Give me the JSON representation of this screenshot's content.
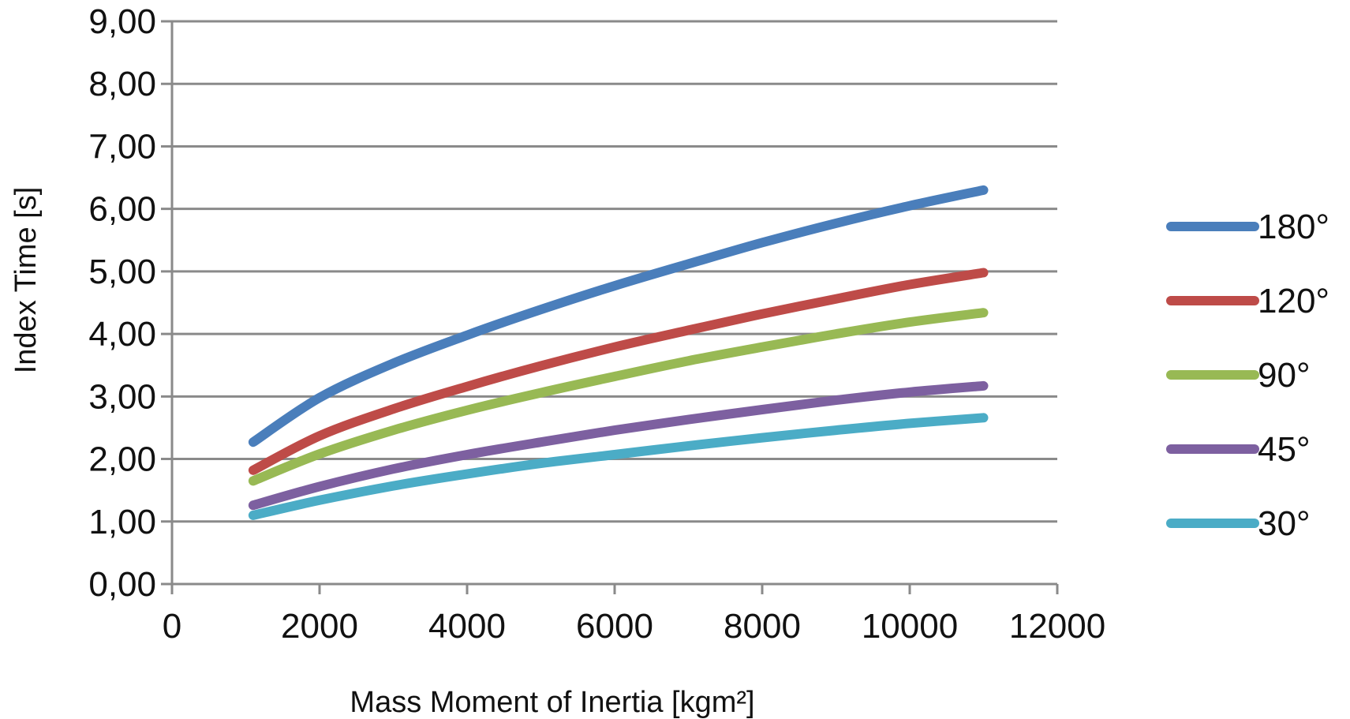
{
  "chart_data": {
    "type": "line",
    "title": "",
    "xlabel": "Mass Moment of Inertia [kgm²]",
    "ylabel": "Index Time [s]",
    "xlim": [
      0,
      12000
    ],
    "ylim": [
      0,
      9
    ],
    "x_ticks": [
      "0",
      "2000",
      "4000",
      "6000",
      "8000",
      "10000",
      "12000"
    ],
    "y_ticks": [
      "0,00",
      "1,00",
      "2,00",
      "3,00",
      "4,00",
      "5,00",
      "6,00",
      "7,00",
      "8,00",
      "9,00"
    ],
    "grid": true,
    "legend_position": "right",
    "x": [
      1100,
      2000,
      3000,
      4000,
      5000,
      6000,
      7000,
      8000,
      9000,
      10000,
      11000
    ],
    "series": [
      {
        "name": "180°",
        "color": "#4a7ebb",
        "values": [
          2.27,
          2.98,
          3.53,
          3.98,
          4.39,
          4.77,
          5.12,
          5.46,
          5.77,
          6.05,
          6.3
        ]
      },
      {
        "name": "120°",
        "color": "#be4b48",
        "values": [
          1.82,
          2.37,
          2.8,
          3.16,
          3.49,
          3.79,
          4.06,
          4.32,
          4.56,
          4.79,
          4.98
        ]
      },
      {
        "name": "90°",
        "color": "#98b954",
        "values": [
          1.65,
          2.08,
          2.46,
          2.78,
          3.06,
          3.32,
          3.57,
          3.79,
          4.0,
          4.19,
          4.34
        ]
      },
      {
        "name": "45°",
        "color": "#7d60a0",
        "values": [
          1.26,
          1.56,
          1.84,
          2.07,
          2.27,
          2.46,
          2.63,
          2.79,
          2.94,
          3.07,
          3.17
        ]
      },
      {
        "name": "30°",
        "color": "#4bacc6",
        "values": [
          1.1,
          1.34,
          1.57,
          1.76,
          1.93,
          2.07,
          2.21,
          2.34,
          2.46,
          2.57,
          2.66
        ]
      }
    ]
  }
}
